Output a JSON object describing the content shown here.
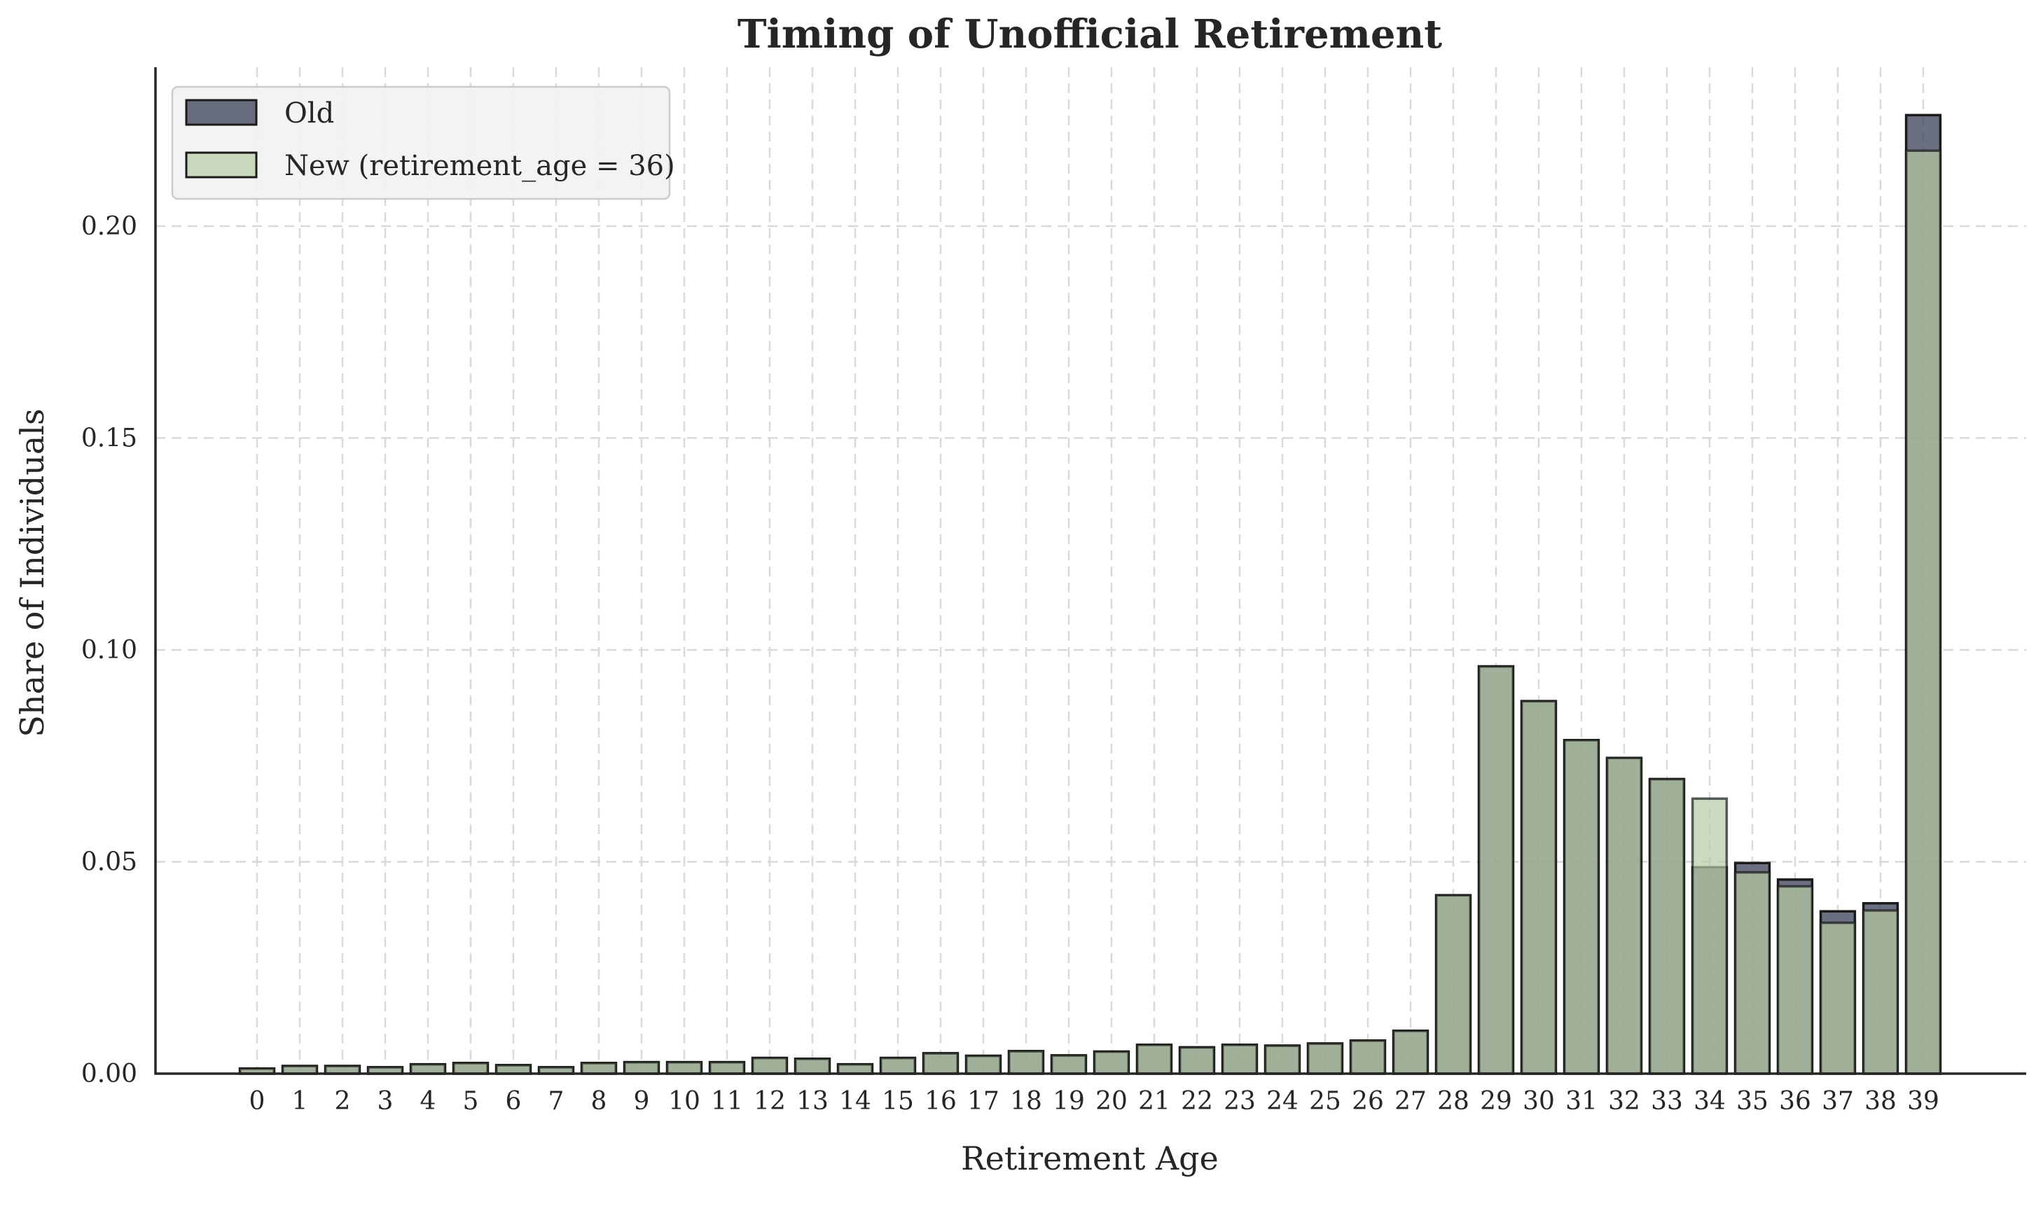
{
  "chart_data": {
    "type": "bar",
    "title": "Timing of Unofficial Retirement",
    "xlabel": "Retirement Age",
    "ylabel": "Share of Individuals",
    "ylim": [
      0,
      0.2375
    ],
    "yticks": [
      0.0,
      0.05,
      0.1,
      0.15,
      0.2
    ],
    "ytick_labels": [
      "0.00",
      "0.05",
      "0.10",
      "0.15",
      "0.20"
    ],
    "grid": true,
    "legend_position": "top-left",
    "categories": [
      "0",
      "1",
      "2",
      "3",
      "4",
      "5",
      "6",
      "7",
      "8",
      "9",
      "10",
      "11",
      "12",
      "13",
      "14",
      "15",
      "16",
      "17",
      "18",
      "19",
      "20",
      "21",
      "22",
      "23",
      "24",
      "25",
      "26",
      "27",
      "28",
      "29",
      "30",
      "31",
      "32",
      "33",
      "34",
      "35",
      "36",
      "37",
      "38",
      "39"
    ],
    "series": [
      {
        "name": "Old",
        "color": "#3a4055",
        "values": [
          0.0012,
          0.0018,
          0.0018,
          0.0015,
          0.0022,
          0.0025,
          0.002,
          0.0015,
          0.0025,
          0.0027,
          0.0027,
          0.0027,
          0.0037,
          0.0035,
          0.0022,
          0.0037,
          0.0048,
          0.0042,
          0.0053,
          0.0043,
          0.0052,
          0.0068,
          0.0062,
          0.0068,
          0.0066,
          0.0071,
          0.0078,
          0.0101,
          0.0421,
          0.0961,
          0.0879,
          0.0787,
          0.0745,
          0.0695,
          0.0487,
          0.0497,
          0.0458,
          0.0383,
          0.0402,
          0.2262
        ]
      },
      {
        "name": "New (retirement_age = 36)",
        "color": "#b7cca4",
        "values": [
          0.0012,
          0.0018,
          0.0018,
          0.0015,
          0.0022,
          0.0025,
          0.002,
          0.0015,
          0.0025,
          0.0027,
          0.0027,
          0.0027,
          0.0037,
          0.0035,
          0.0022,
          0.0037,
          0.0048,
          0.0042,
          0.0053,
          0.0043,
          0.0052,
          0.0068,
          0.0062,
          0.0068,
          0.0066,
          0.0071,
          0.0078,
          0.0101,
          0.0421,
          0.0961,
          0.0879,
          0.0787,
          0.0745,
          0.0695,
          0.0649,
          0.0475,
          0.0442,
          0.0356,
          0.0385,
          0.2178
        ]
      }
    ]
  }
}
